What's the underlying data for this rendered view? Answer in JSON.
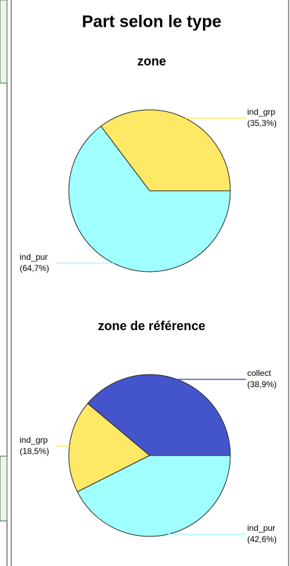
{
  "title": "Part selon le type",
  "chart_data": [
    {
      "type": "pie",
      "title": "zone",
      "categories": [
        "ind_grp",
        "ind_pur"
      ],
      "values": [
        35.3,
        64.7
      ],
      "value_labels": [
        "(35,3%)",
        "(64,7%)"
      ],
      "colors": [
        "#ffe866",
        "#a0ffff"
      ]
    },
    {
      "type": "pie",
      "title": "zone de référence",
      "categories": [
        "collect",
        "ind_grp",
        "ind_pur"
      ],
      "values": [
        38.9,
        18.5,
        42.6
      ],
      "value_labels": [
        "(38,9%)",
        "(18,5%)",
        "(42,6%)"
      ],
      "colors": [
        "#4455cc",
        "#ffe866",
        "#a0ffff"
      ]
    }
  ]
}
